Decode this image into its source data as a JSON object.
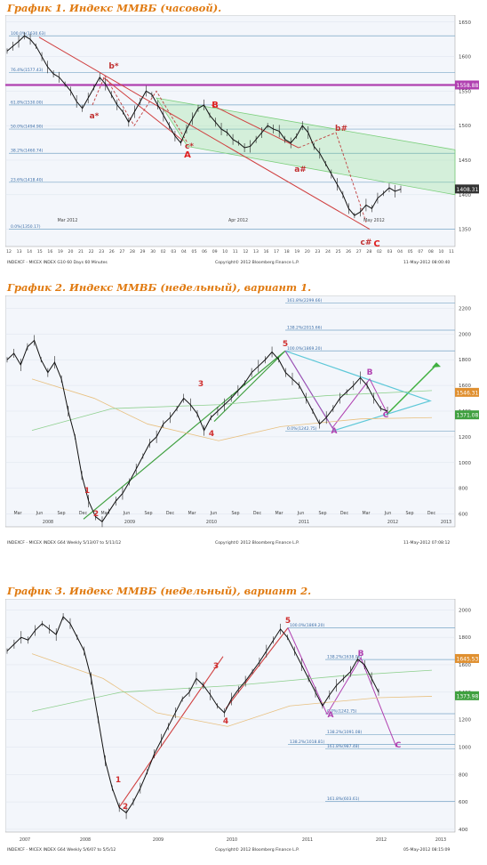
{
  "charts": [
    {
      "title": "График 1.   Индекс ММВБ (часовой).",
      "footer_left": "INDEXCF - MICEX INDEX     G10    60 Days  60 Minutes",
      "footer_center": "Copyright© 2012 Bloomberg Finance L.P.",
      "footer_right": "11-May-2012 08:00:40",
      "right_tags": [
        {
          "value": "1558.88",
          "color": "#b040b0"
        },
        {
          "value": "1408.31",
          "color": "#333333"
        }
      ],
      "fib_labels": [
        "100.0%(1630.63)",
        "76.4%(1577.43)",
        "61.8%(1530.00)",
        "50.0%(1494.90)",
        "38.2%(1460.74)",
        "23.6%(1418.40)",
        "0.0%(1350.17)"
      ],
      "wave_labels": [
        {
          "text": "b*",
          "color": "#c03030"
        },
        {
          "text": "a*",
          "color": "#c03030"
        },
        {
          "text": "c*",
          "color": "#c03030"
        },
        {
          "text": "A",
          "color": "#e02020"
        },
        {
          "text": "B",
          "color": "#e02020"
        },
        {
          "text": "b#",
          "color": "#c03030"
        },
        {
          "text": "a#",
          "color": "#c03030"
        },
        {
          "text": "c#",
          "color": "#c03030"
        },
        {
          "text": "C",
          "color": "#e02020"
        }
      ],
      "chart_data": {
        "type": "line",
        "x_ticks": [
          "12",
          "13",
          "14",
          "15",
          "16",
          "19",
          "20",
          "21",
          "22",
          "23",
          "26",
          "27",
          "28",
          "29",
          "30",
          "02",
          "03",
          "04",
          "05",
          "06",
          "09",
          "10",
          "11",
          "12",
          "13",
          "16",
          "17",
          "18",
          "19",
          "20",
          "23",
          "24",
          "25",
          "26",
          "27",
          "28",
          "02",
          "03",
          "04",
          "05",
          "07",
          "08",
          "10",
          "11"
        ],
        "x_month_labels": [
          "Mar 2012",
          "Apr 2012",
          "May 2012"
        ],
        "ylim": [
          1325,
          1660
        ],
        "y_ticks": [
          1350,
          1400,
          1450,
          1500,
          1550,
          1600,
          1650
        ],
        "series": [
          {
            "values": [
              1608,
              1615,
              1622,
              1630,
              1625,
              1615,
              1600,
              1585,
              1575,
              1570,
              1560,
              1550,
              1535,
              1525,
              1540,
              1555,
              1570,
              1560,
              1545,
              1530,
              1520,
              1505,
              1520,
              1535,
              1550,
              1545,
              1530,
              1515,
              1500,
              1485,
              1475,
              1495,
              1510,
              1525,
              1530,
              1515,
              1505,
              1495,
              1490,
              1480,
              1475,
              1468,
              1470,
              1480,
              1490,
              1500,
              1495,
              1492,
              1480,
              1475,
              1485,
              1500,
              1490,
              1470,
              1460,
              1445,
              1430,
              1415,
              1400,
              1380,
              1370,
              1375,
              1385,
              1380,
              1395,
              1402,
              1410,
              1405,
              1408
            ]
          }
        ]
      }
    },
    {
      "title": "График 2.   Индекс ММВБ (недельный), вариант 1.",
      "footer_left": "INDEXCF - MICEX INDEX     G64    Weekly  5/13/07 to 5/11/12",
      "footer_center": "Copyright© 2012 Bloomberg Finance L.P.",
      "footer_right": "11-May-2012 07:08:12",
      "right_tags": [
        {
          "value": "1546.31",
          "color": "#e09030"
        },
        {
          "value": "1371.08",
          "color": "#40a040"
        }
      ],
      "fib_labels": [
        "161.8%(2299.66)",
        "138.2%(2015.66)",
        "100.0%(1869.20)",
        "0.0%(1242.75)"
      ],
      "wave_labels": [
        {
          "text": "1",
          "color": "#d03030"
        },
        {
          "text": "2",
          "color": "#d03030"
        },
        {
          "text": "3",
          "color": "#d03030"
        },
        {
          "text": "4",
          "color": "#d03030"
        },
        {
          "text": "5",
          "color": "#d03030"
        },
        {
          "text": "A",
          "color": "#b040b0"
        },
        {
          "text": "B",
          "color": "#b040b0"
        },
        {
          "text": "C",
          "color": "#b040b0"
        }
      ],
      "chart_data": {
        "type": "line",
        "x_month_labels": [
          "Mar",
          "Jun",
          "Sep",
          "Dec",
          "Mar",
          "Jun",
          "Sep",
          "Dec",
          "Mar",
          "Jun",
          "Sep",
          "Dec",
          "Mar",
          "Jun",
          "Sep",
          "Dec",
          "Mar",
          "Jun",
          "Sep",
          "Dec"
        ],
        "x_year_labels": [
          "2008",
          "2009",
          "2010",
          "2011",
          "2012",
          "2013"
        ],
        "ylim": [
          500,
          2300
        ],
        "y_ticks": [
          600,
          800,
          1000,
          1200,
          1400,
          1600,
          1800,
          2000,
          2200
        ],
        "series": [
          {
            "values": [
              1800,
              1850,
              1760,
              1900,
              1950,
              1800,
              1700,
              1780,
              1650,
              1400,
              1200,
              900,
              700,
              580,
              540,
              620,
              700,
              760,
              850,
              950,
              1050,
              1150,
              1200,
              1300,
              1350,
              1420,
              1500,
              1450,
              1380,
              1250,
              1350,
              1400,
              1450,
              1500,
              1560,
              1620,
              1700,
              1750,
              1800,
              1860,
              1800,
              1700,
              1650,
              1600,
              1500,
              1400,
              1300,
              1350,
              1420,
              1500,
              1550,
              1600,
              1660,
              1600,
              1500,
              1420,
              1400
            ]
          }
        ]
      }
    },
    {
      "title": "График 3.   Индекс ММВБ (недельный), вариант 2.",
      "footer_left": "INDEXCF - MICEX INDEX     G64    Weekly  5/6/07 to 5/5/12",
      "footer_center": "Copyright© 2012 Bloomberg Finance L.P.",
      "footer_right": "05-May-2012 08:15:09",
      "right_tags": [
        {
          "value": "1645.53",
          "color": "#e09030"
        },
        {
          "value": "1373.98",
          "color": "#40a040"
        }
      ],
      "fib_labels": [
        "100.0%(1869.20)",
        "138.2%(1638.06)",
        "0.0%(1242.75)",
        "138.2%(1091.08)",
        "138.2%(1018.81)",
        "161.8%(987.48)",
        "161.8%(603.61)"
      ],
      "wave_labels": [
        {
          "text": "1",
          "color": "#d03030"
        },
        {
          "text": "2",
          "color": "#d03030"
        },
        {
          "text": "3",
          "color": "#d03030"
        },
        {
          "text": "4",
          "color": "#d03030"
        },
        {
          "text": "5",
          "color": "#d03030"
        },
        {
          "text": "A",
          "color": "#b040b0"
        },
        {
          "text": "B",
          "color": "#b040b0"
        },
        {
          "text": "C",
          "color": "#b040b0"
        }
      ],
      "chart_data": {
        "type": "line",
        "x_year_labels": [
          "2007",
          "2008",
          "2009",
          "2010",
          "2011",
          "2012",
          "2013"
        ],
        "ylim": [
          380,
          2080
        ],
        "y_ticks": [
          400,
          600,
          800,
          1000,
          1200,
          1400,
          1600,
          1800,
          2000
        ],
        "series": [
          {
            "values": [
              1700,
              1750,
              1800,
              1780,
              1850,
              1900,
              1860,
              1820,
              1950,
              1900,
              1800,
              1700,
              1500,
              1200,
              900,
              700,
              560,
              520,
              600,
              700,
              820,
              950,
              1050,
              1150,
              1250,
              1350,
              1400,
              1500,
              1450,
              1380,
              1300,
              1250,
              1350,
              1420,
              1480,
              1550,
              1620,
              1700,
              1780,
              1860,
              1800,
              1700,
              1600,
              1500,
              1400,
              1300,
              1380,
              1450,
              1500,
              1550,
              1640,
              1600,
              1500,
              1400
            ]
          }
        ]
      }
    }
  ]
}
